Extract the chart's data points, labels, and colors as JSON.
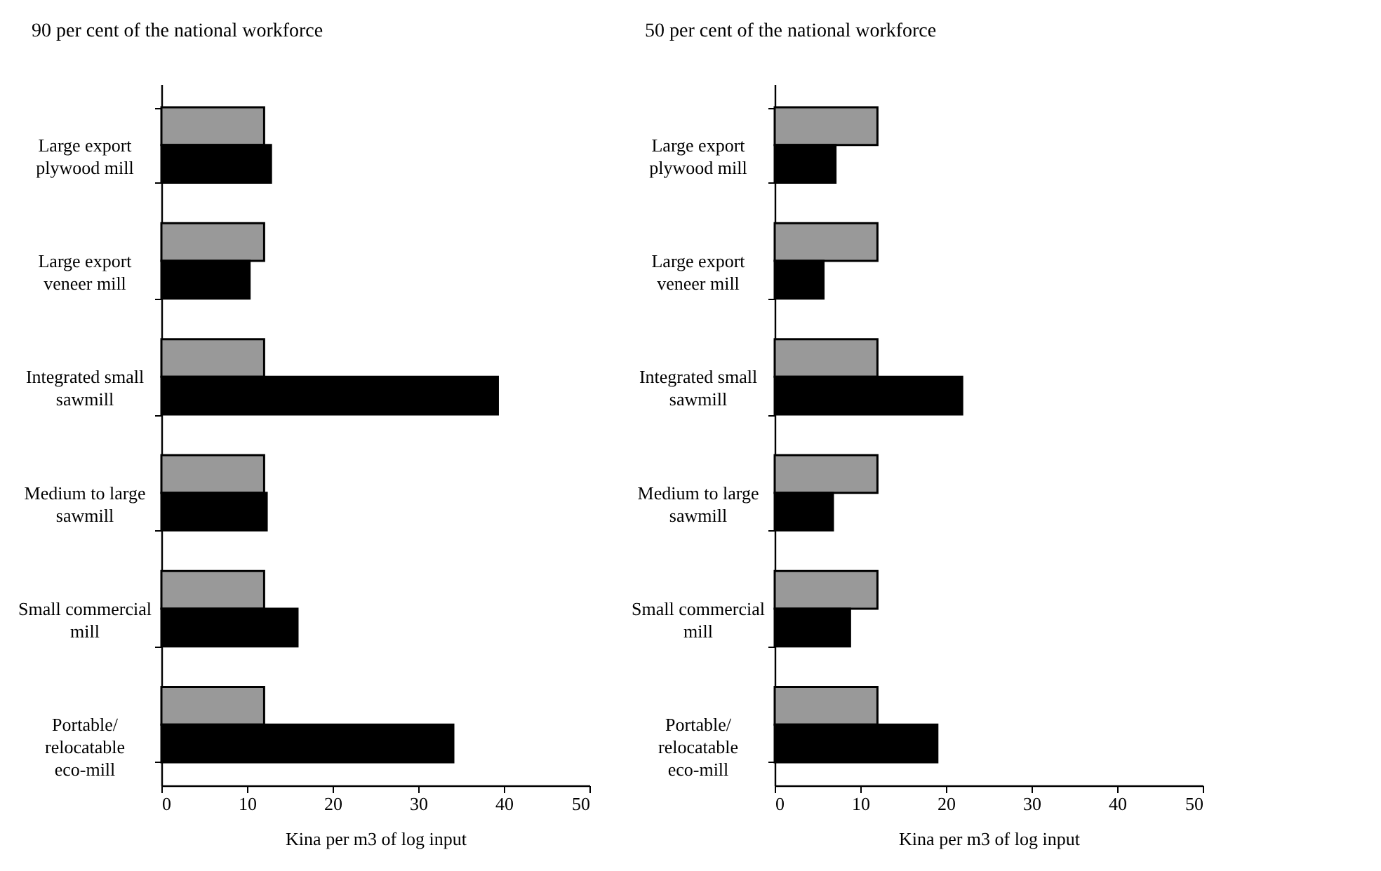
{
  "chart_data": [
    {
      "type": "bar",
      "orientation": "horizontal",
      "title": "90 per cent of the national workforce",
      "xlabel": "Kina per m3 of log input",
      "categories": [
        "Large export plywood mill",
        "Large export veneer mill",
        "Integrated small sawmill",
        "Medium to large sawmill",
        "Small commercial mill",
        "Portable/ relocatable eco-mill"
      ],
      "series": [
        {
          "color": "#999999",
          "values": [
            12,
            12,
            12,
            12,
            12,
            12
          ]
        },
        {
          "color": "#000000",
          "values": [
            12.8,
            10.3,
            39.3,
            12.3,
            15.9,
            34.1
          ]
        }
      ],
      "xlim": [
        0,
        50
      ],
      "xticks": [
        0,
        10,
        20,
        30,
        40,
        50
      ]
    },
    {
      "type": "bar",
      "orientation": "horizontal",
      "title": "50 per cent of the national workforce",
      "xlabel": "Kina per m3 of log input",
      "categories": [
        "Large export plywood mill",
        "Large export veneer mill",
        "Integrated small sawmill",
        "Medium to large sawmill",
        "Small commercial mill",
        "Portable/ relocatable eco-mill"
      ],
      "series": [
        {
          "color": "#999999",
          "values": [
            12,
            12,
            12,
            12,
            12,
            12
          ]
        },
        {
          "color": "#000000",
          "values": [
            7.1,
            5.7,
            21.9,
            6.8,
            8.8,
            19.0
          ]
        }
      ],
      "xlim": [
        0,
        50
      ],
      "xticks": [
        0,
        10,
        20,
        30,
        40,
        50
      ]
    }
  ]
}
